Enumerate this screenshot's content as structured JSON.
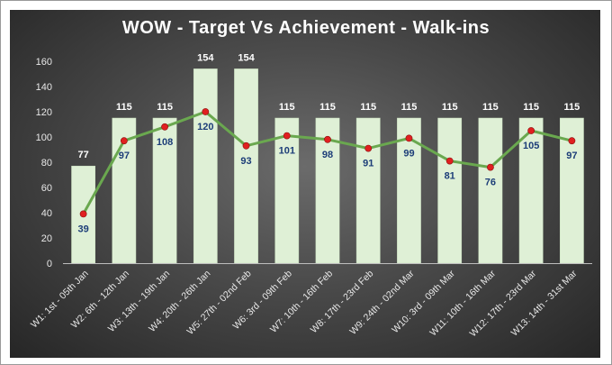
{
  "chart_data": {
    "type": "bar",
    "title": "WOW - Target Vs Achievement - Walk-ins",
    "xlabel": "",
    "ylabel": "",
    "ylim": [
      0,
      160
    ],
    "yticks": [
      0,
      20,
      40,
      60,
      80,
      100,
      120,
      140,
      160
    ],
    "grid": false,
    "legend": "none",
    "categories": [
      "W1: 1st - 05th Jan",
      "W2: 6th - 12th Jan",
      "W3: 13th - 19th Jan",
      "W4: 20th - 26th Jan",
      "W5: 27th - 02nd Feb",
      "W6: 3rd - 09th Feb",
      "W7: 10th - 16th Feb",
      "W8: 17th - 23rd Feb",
      "W9: 24th - 02nd Mar",
      "W10: 3rd - 09th Mar",
      "W11: 10th - 16th Mar",
      "W12: 17th - 23rd Mar",
      "W13: 14th - 31st Mar"
    ],
    "series": [
      {
        "type": "bar",
        "values": [
          77,
          115,
          115,
          154,
          154,
          115,
          115,
          115,
          115,
          115,
          115,
          115,
          115
        ]
      },
      {
        "type": "line",
        "values": [
          39,
          97,
          108,
          120,
          93,
          101,
          98,
          91,
          99,
          81,
          76,
          105,
          97
        ]
      }
    ],
    "colors": {
      "bar": "#dff0d6",
      "line": "#6aa84f",
      "marker": "#e02020",
      "achievement_label": "#1c3d78",
      "target_label": "#ffffff"
    }
  }
}
